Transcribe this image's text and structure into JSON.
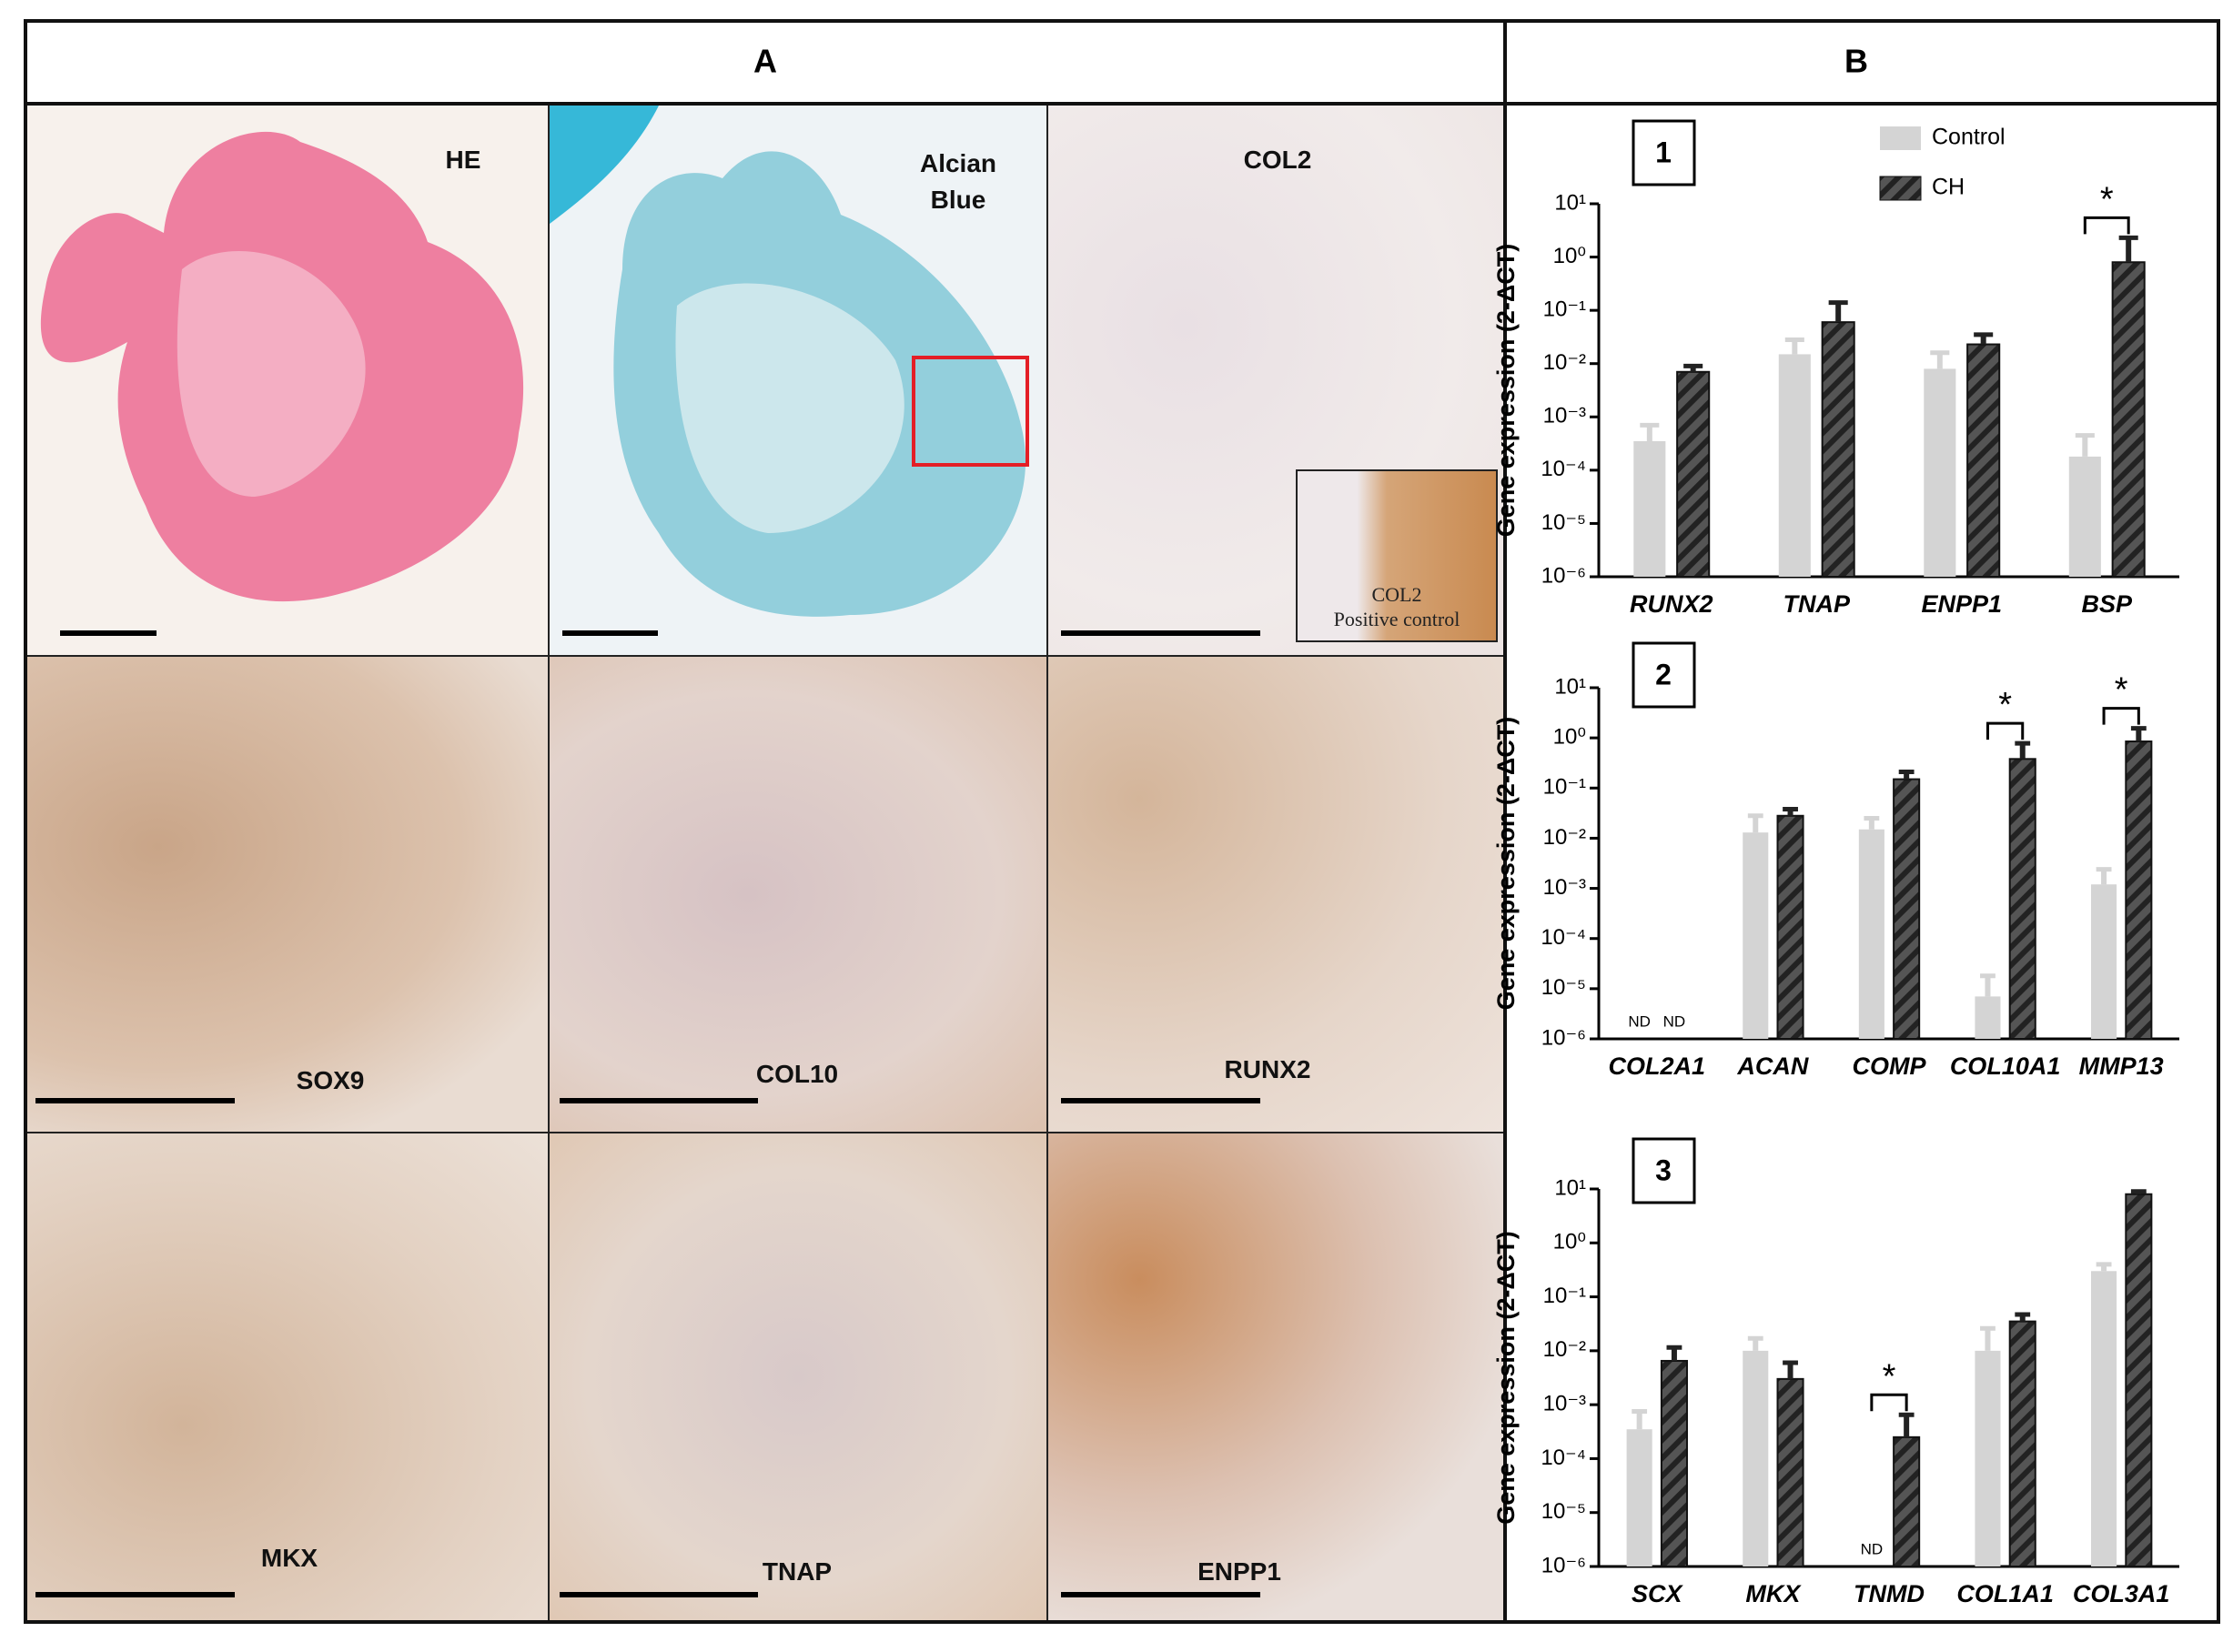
{
  "panel_a": {
    "label": "A",
    "images": [
      {
        "label": "HE"
      },
      {
        "label": "Alcian Blue"
      },
      {
        "label": "COL2"
      },
      {
        "label": "SOX9"
      },
      {
        "label": "COL10"
      },
      {
        "label": "RUNX2"
      },
      {
        "label": "MKX"
      },
      {
        "label": "TNAP"
      },
      {
        "label": "ENPP1"
      }
    ],
    "inset": {
      "lines": [
        "COL2",
        "Positive control"
      ]
    }
  },
  "panel_b": {
    "label": "B"
  },
  "chart_data": [
    {
      "type": "bar",
      "panel": "1",
      "ylabel": "Gene expression (2-ΔCT)",
      "log_scale": true,
      "legend": "top-right",
      "categories": [
        "RUNX2",
        "TNAP",
        "ENPP1",
        "BSP"
      ],
      "series": [
        {
          "name": "Control",
          "color": "#d4d4d4",
          "values": [
            0.00035,
            0.015,
            0.008,
            0.00018
          ],
          "errors": [
            0.00035,
            0.013,
            0.008,
            0.00027
          ]
        },
        {
          "name": "CH",
          "color": "#555555",
          "pattern": "hatch",
          "values": [
            0.007,
            0.06,
            0.023,
            0.8
          ],
          "errors": [
            0.002,
            0.08,
            0.012,
            1.5
          ]
        }
      ],
      "significance": [
        {
          "category": "BSP",
          "label": "*"
        }
      ],
      "ylim": [
        1e-06,
        10
      ],
      "yticks": [
        {
          "value": 10,
          "label": "10¹"
        },
        {
          "value": 1,
          "label": "10⁰"
        },
        {
          "value": 0.1,
          "label": "10⁻¹"
        },
        {
          "value": 0.01,
          "label": "10⁻²"
        },
        {
          "value": 0.001,
          "label": "10⁻³"
        },
        {
          "value": 0.0001,
          "label": "10⁻⁴"
        },
        {
          "value": 1e-05,
          "label": "10⁻⁵"
        },
        {
          "value": 1e-06,
          "label": "10⁻⁶"
        }
      ]
    },
    {
      "type": "bar",
      "panel": "2",
      "ylabel": "Gene expression (2-ΔCT)",
      "log_scale": true,
      "nd_label": "ND",
      "categories": [
        "COL2A1",
        "ACAN",
        "COMP",
        "COL10A1",
        "MMP13"
      ],
      "series": [
        {
          "color": "#d4d4d4",
          "values": [
            null,
            0.013,
            0.015,
            7e-06,
            0.0012
          ],
          "errors": [
            null,
            0.015,
            0.01,
            1.1e-05,
            0.0012
          ]
        },
        {
          "color": "#555555",
          "pattern": "hatch",
          "values": [
            null,
            0.028,
            0.15,
            0.38,
            0.85
          ],
          "errors": [
            null,
            0.01,
            0.06,
            0.4,
            0.7
          ]
        }
      ],
      "significance": [
        {
          "category": "COL10A1",
          "label": "*"
        },
        {
          "category": "MMP13",
          "label": "*"
        }
      ],
      "ylim": [
        1e-06,
        10
      ],
      "yticks": [
        {
          "value": 10,
          "label": "10¹"
        },
        {
          "value": 1,
          "label": "10⁰"
        },
        {
          "value": 0.1,
          "label": "10⁻¹"
        },
        {
          "value": 0.01,
          "label": "10⁻²"
        },
        {
          "value": 0.001,
          "label": "10⁻³"
        },
        {
          "value": 0.0001,
          "label": "10⁻⁴"
        },
        {
          "value": 1e-05,
          "label": "10⁻⁵"
        },
        {
          "value": 1e-06,
          "label": "10⁻⁶"
        }
      ]
    },
    {
      "type": "bar",
      "panel": "3",
      "ylabel": "Gene expression (2-ΔCT)",
      "log_scale": true,
      "nd_label": "ND",
      "categories": [
        "SCX",
        "MKX",
        "TNMD",
        "COL1A1",
        "COL3A1"
      ],
      "series": [
        {
          "color": "#d4d4d4",
          "values": [
            0.00035,
            0.01,
            null,
            0.01,
            0.3
          ],
          "errors": [
            0.0004,
            0.007,
            null,
            0.016,
            0.1
          ]
        },
        {
          "color": "#555555",
          "pattern": "hatch",
          "values": [
            0.0065,
            0.003,
            0.00025,
            0.035,
            8
          ],
          "errors": [
            0.005,
            0.003,
            0.0004,
            0.012,
            1
          ]
        }
      ],
      "significance": [
        {
          "category": "TNMD",
          "label": "*"
        }
      ],
      "ylim": [
        1e-06,
        10
      ],
      "yticks": [
        {
          "value": 10,
          "label": "10¹"
        },
        {
          "value": 1,
          "label": "10⁰"
        },
        {
          "value": 0.1,
          "label": "10⁻¹"
        },
        {
          "value": 0.01,
          "label": "10⁻²"
        },
        {
          "value": 0.001,
          "label": "10⁻³"
        },
        {
          "value": 0.0001,
          "label": "10⁻⁴"
        },
        {
          "value": 1e-05,
          "label": "10⁻⁵"
        },
        {
          "value": 1e-06,
          "label": "10⁻⁶"
        }
      ]
    }
  ]
}
